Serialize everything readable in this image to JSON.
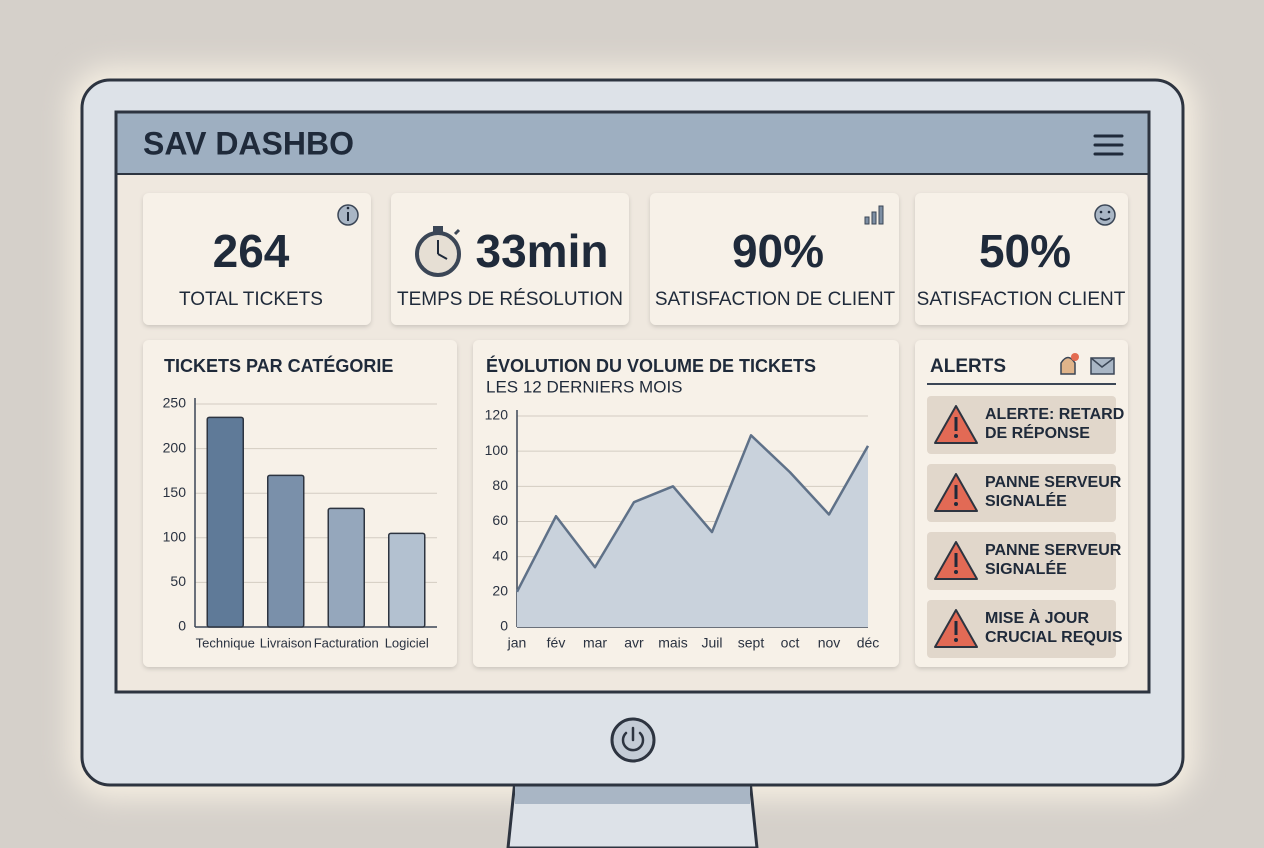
{
  "header": {
    "title": "SAV DASHBO"
  },
  "kpis": [
    {
      "value": "264",
      "label": "TOTAL TICKETS"
    },
    {
      "value": "33min",
      "label": "TEMPS DE RÉSOLUTION"
    },
    {
      "value": "90%",
      "label": "SATISFACTION DE CLIENT"
    },
    {
      "value": "50%",
      "label": "SATISFACTION CLIENT"
    }
  ],
  "chart_data": [
    {
      "type": "bar",
      "title": "TICKETS PAR CATÉGORIE",
      "categories": [
        "Technique",
        "Livraison",
        "Facturation",
        "Logiciel"
      ],
      "values": [
        235,
        170,
        133,
        105
      ],
      "colors": [
        "#5f7a98",
        "#7a90aa",
        "#95a7bc",
        "#b3c1d0"
      ],
      "ylim": [
        0,
        250
      ],
      "yticks": [
        0,
        50,
        100,
        150,
        200,
        250
      ],
      "grid": true
    },
    {
      "type": "area",
      "title": "ÉVOLUTION DU VOLUME DE TICKETS",
      "subtitle": "LES 12 DERNIERS MOIS",
      "categories": [
        "jan",
        "fév",
        "mar",
        "avr",
        "mais",
        "Juil",
        "sept",
        "oct",
        "nov",
        "déc"
      ],
      "values": [
        20,
        63,
        34,
        71,
        80,
        54,
        109,
        88,
        64,
        103
      ],
      "color": "#5f7188",
      "fill": "#c9d2dc",
      "ylim": [
        0,
        120
      ],
      "yticks": [
        0,
        20,
        40,
        60,
        80,
        100,
        120
      ],
      "grid": true
    }
  ],
  "alerts": {
    "title": "ALERTS",
    "items": [
      {
        "lines": [
          "ALERTE: RETARD",
          "DE RÉPONSE"
        ]
      },
      {
        "lines": [
          "PANNE SERVEUR",
          "SIGNALÉE"
        ]
      },
      {
        "lines": [
          "PANNE SERVEUR",
          "SIGNALÉE"
        ]
      },
      {
        "lines": [
          "MISE À JOUR",
          "CRUCIAL REQUIS"
        ]
      }
    ]
  }
}
